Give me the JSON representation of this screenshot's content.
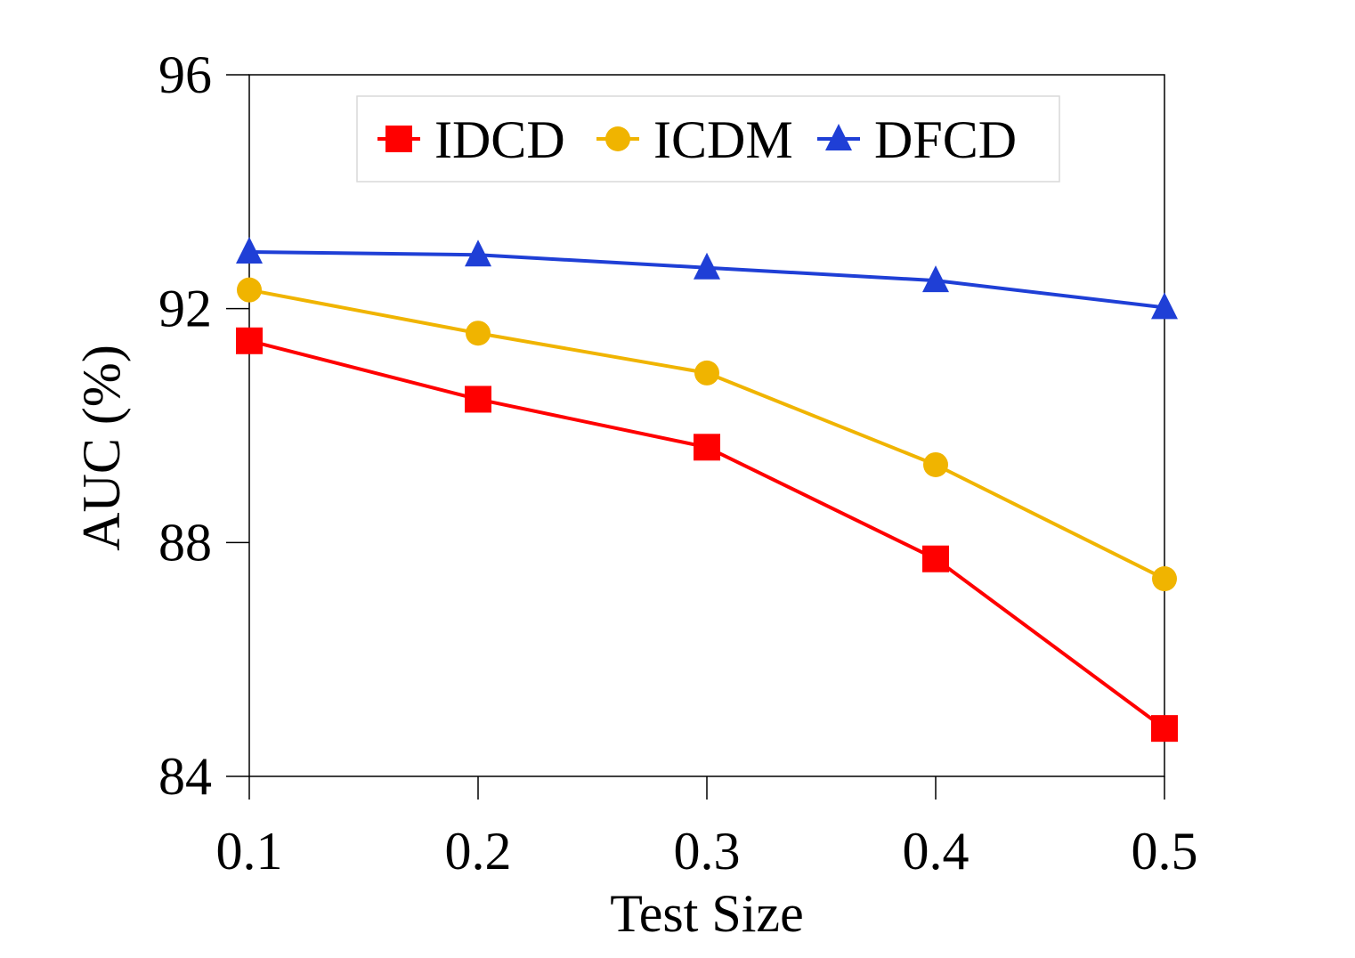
{
  "chart_data": {
    "type": "line",
    "title": "",
    "xlabel": "Test Size",
    "ylabel": "AUC (%)",
    "x": [
      0.1,
      0.2,
      0.3,
      0.4,
      0.5
    ],
    "x_tick_labels": [
      "0.1",
      "0.2",
      "0.3",
      "0.4",
      "0.5"
    ],
    "yticks": [
      84,
      88,
      92,
      96
    ],
    "y_tick_labels": [
      "84",
      "88",
      "92",
      "96"
    ],
    "ylim": [
      84,
      96
    ],
    "grid": false,
    "legend_position": "top-center",
    "series": [
      {
        "name": "IDCD",
        "color": "#ff0000",
        "marker": "square",
        "values": [
          91.45,
          90.45,
          89.63,
          87.72,
          84.82
        ]
      },
      {
        "name": "ICDM",
        "color": "#f0b400",
        "marker": "circle",
        "values": [
          92.32,
          91.58,
          90.9,
          89.33,
          87.38
        ]
      },
      {
        "name": "DFCD",
        "color": "#1f3fd6",
        "marker": "triangle",
        "values": [
          92.97,
          92.92,
          92.7,
          92.48,
          92.02
        ]
      }
    ]
  }
}
